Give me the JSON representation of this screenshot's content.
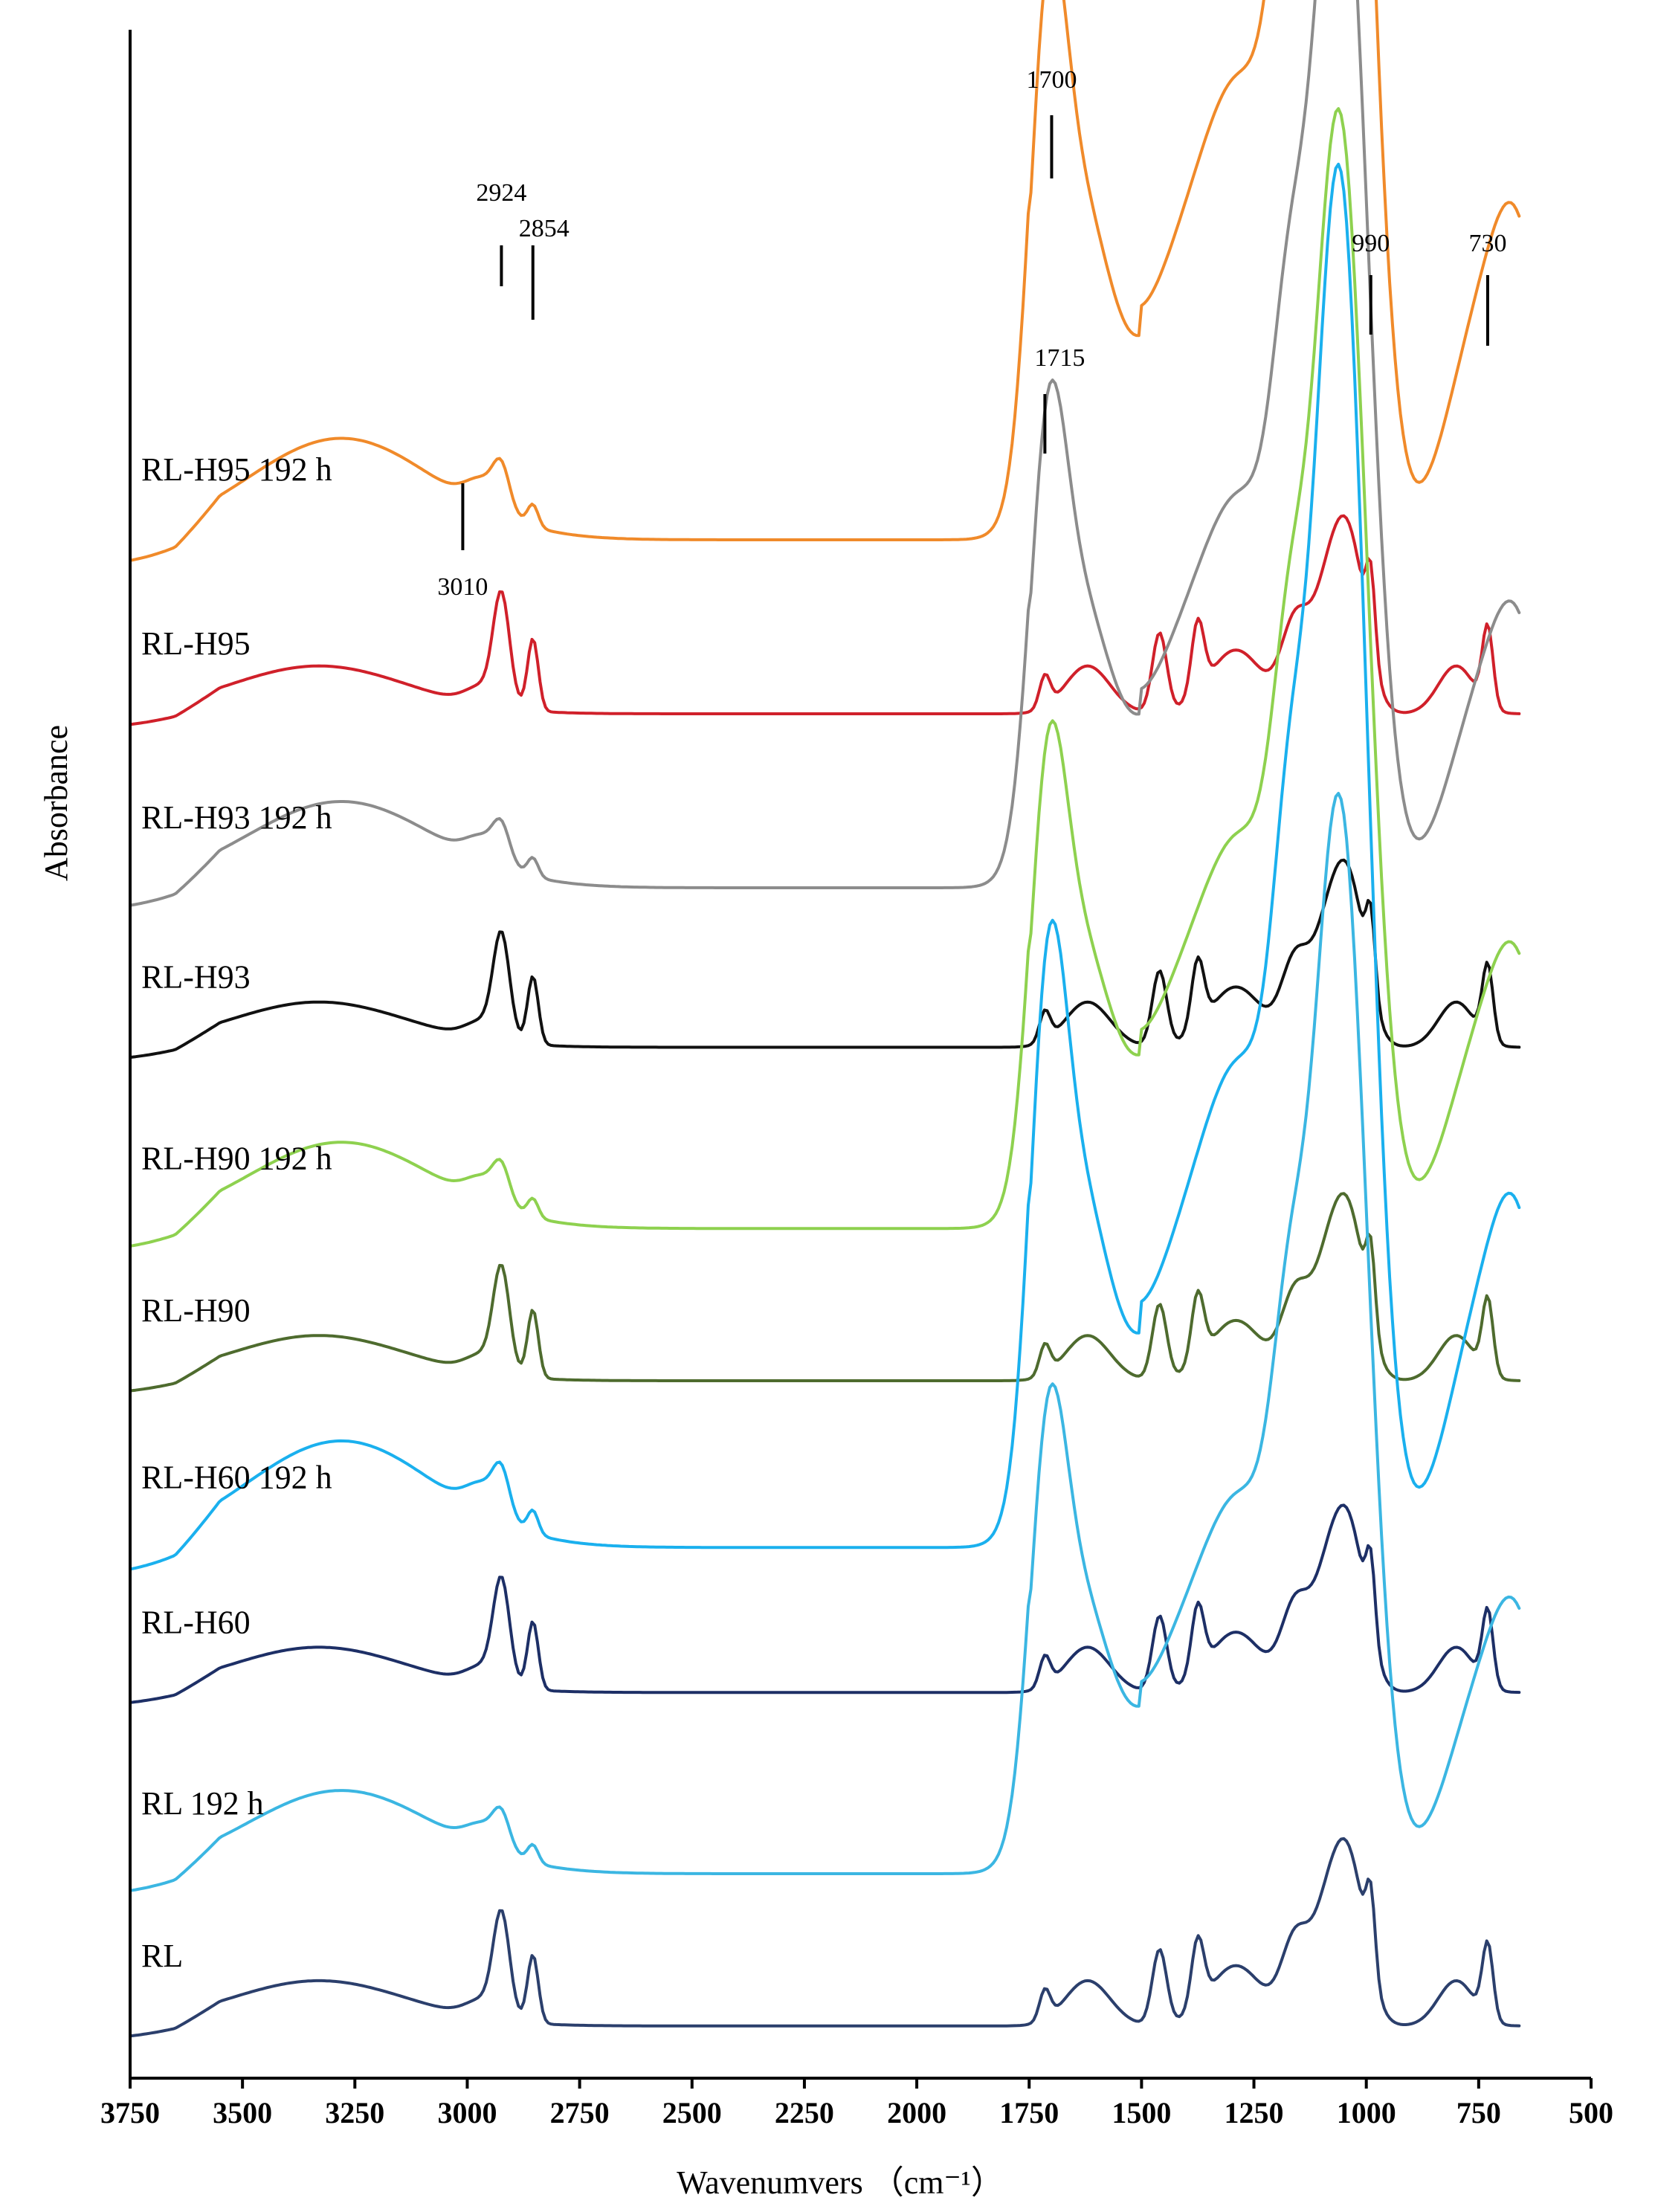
{
  "chart_data": {
    "type": "line",
    "title": "",
    "xlabel": "Wavenumvers （cm⁻¹）",
    "ylabel": "Absorbance",
    "xlim": [
      3750,
      500
    ],
    "x_reversed": true,
    "xticks": [
      3750,
      3500,
      3250,
      3000,
      2750,
      2500,
      2250,
      2000,
      1750,
      1500,
      1250,
      1000,
      750,
      500
    ],
    "grid": false,
    "legend": "inline labels at left of each trace",
    "series": [
      {
        "name": "RL-H95 192 h",
        "color": "#F08A2A",
        "baseline": 0.92,
        "scale": 1.0,
        "aged": true
      },
      {
        "name": "RL-H95",
        "color": "#D0202A",
        "baseline": 0.8,
        "scale": 0.55,
        "aged": false
      },
      {
        "name": "RL-H93 192 h",
        "color": "#8C8C8C",
        "baseline": 0.68,
        "scale": 0.85,
        "aged": true
      },
      {
        "name": "RL-H93",
        "color": "#111111",
        "baseline": 0.57,
        "scale": 0.52,
        "aged": false
      },
      {
        "name": "RL-H90 192 h",
        "color": "#8ED14F",
        "baseline": 0.445,
        "scale": 0.85,
        "aged": true
      },
      {
        "name": "RL-H90",
        "color": "#4E6B2E",
        "baseline": 0.34,
        "scale": 0.52,
        "aged": false
      },
      {
        "name": "RL-H60 192 h",
        "color": "#1AB0EE",
        "baseline": 0.225,
        "scale": 1.05,
        "aged": true
      },
      {
        "name": "RL-H60",
        "color": "#1D2F66",
        "baseline": 0.125,
        "scale": 0.52,
        "aged": false
      },
      {
        "name": "RL 192 h",
        "color": "#3BB6E2",
        "baseline": 0.0,
        "scale": 0.82,
        "aged": true
      },
      {
        "name": "RL",
        "color": "#2B3F6C",
        "baseline": -0.105,
        "scale": 0.52,
        "aged": false
      }
    ],
    "annotations": [
      {
        "text": "2924",
        "wavenumber": 2924
      },
      {
        "text": "2854",
        "wavenumber": 2854
      },
      {
        "text": "1700",
        "wavenumber": 1700
      },
      {
        "text": "990",
        "wavenumber": 990
      },
      {
        "text": "730",
        "wavenumber": 730
      },
      {
        "text": "1715",
        "wavenumber": 1715
      },
      {
        "text": "3010",
        "wavenumber": 3010
      }
    ]
  }
}
